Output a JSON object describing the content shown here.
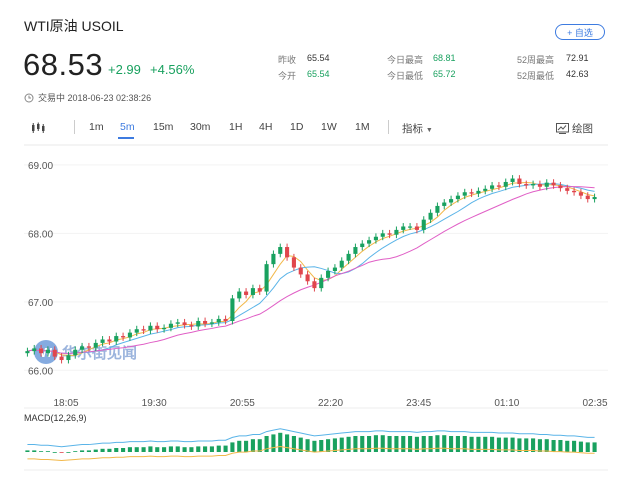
{
  "header": {
    "title": "WTI原油 USOIL",
    "watch_label": "+ 自选",
    "price": "68.53",
    "change": "+2.99",
    "change_pct": "+4.56%",
    "status_time": "交易中 2018-06-23 02:38:26"
  },
  "stats": {
    "prev_close_label": "昨收",
    "prev_close": "65.54",
    "open_label": "今开",
    "open": "65.54",
    "high_label": "今日最高",
    "high": "68.81",
    "low_label": "今日最低",
    "low": "65.72",
    "w52_high_label": "52周最高",
    "w52_high": "72.91",
    "w52_low_label": "52周最低",
    "w52_low": "42.63"
  },
  "toolbar": {
    "intervals": [
      "1m",
      "5m",
      "15m",
      "30m",
      "1H",
      "4H",
      "1D",
      "1W",
      "1M"
    ],
    "active_interval": "5m",
    "indicators_label": "指标",
    "draw_label": "绘图"
  },
  "colors": {
    "up": "#19a15f",
    "down": "#e0464d",
    "accent": "#3d7be0",
    "ma_short": "#f2b84a",
    "ma_mid": "#5ab4e8",
    "ma_long": "#e05fc6"
  },
  "chart_data": {
    "type": "candlestick",
    "y_ticks": [
      "69.00",
      "68.00",
      "67.00",
      "66.00"
    ],
    "ylim": [
      65.8,
      69.1
    ],
    "x_ticks": [
      "18:05",
      "19:30",
      "20:55",
      "22:20",
      "23:45",
      "01:10",
      "02:35"
    ],
    "watermark": "华尔街见闻",
    "macd_label": "MACD(12,26,9)",
    "close_series": [
      66.28,
      66.32,
      66.25,
      66.3,
      66.2,
      66.15,
      66.22,
      66.3,
      66.35,
      66.33,
      66.4,
      66.45,
      66.42,
      66.5,
      66.48,
      66.55,
      66.6,
      66.58,
      66.65,
      66.6,
      66.62,
      66.68,
      66.7,
      66.66,
      66.64,
      66.72,
      66.68,
      66.7,
      66.75,
      66.72,
      67.05,
      67.15,
      67.1,
      67.2,
      67.15,
      67.55,
      67.7,
      67.8,
      67.65,
      67.5,
      67.4,
      67.3,
      67.2,
      67.35,
      67.45,
      67.5,
      67.6,
      67.7,
      67.8,
      67.85,
      67.9,
      67.95,
      68.0,
      67.98,
      68.05,
      68.1,
      68.1,
      68.05,
      68.2,
      68.3,
      68.4,
      68.45,
      68.5,
      68.55,
      68.6,
      68.58,
      68.62,
      68.65,
      68.7,
      68.68,
      68.75,
      68.8,
      68.72,
      68.7,
      68.72,
      68.68,
      68.74,
      68.7,
      68.66,
      68.62,
      68.6,
      68.55,
      68.5,
      68.53
    ],
    "macd_histogram": [
      0.02,
      0.02,
      0.01,
      0.01,
      0.0,
      -0.01,
      0.0,
      0.01,
      0.02,
      0.02,
      0.03,
      0.04,
      0.04,
      0.05,
      0.05,
      0.06,
      0.06,
      0.06,
      0.07,
      0.06,
      0.06,
      0.07,
      0.07,
      0.06,
      0.06,
      0.07,
      0.07,
      0.07,
      0.08,
      0.08,
      0.12,
      0.14,
      0.14,
      0.16,
      0.16,
      0.2,
      0.22,
      0.24,
      0.22,
      0.2,
      0.18,
      0.16,
      0.14,
      0.15,
      0.16,
      0.17,
      0.18,
      0.19,
      0.2,
      0.2,
      0.2,
      0.21,
      0.21,
      0.2,
      0.2,
      0.2,
      0.2,
      0.19,
      0.2,
      0.2,
      0.21,
      0.21,
      0.2,
      0.2,
      0.2,
      0.19,
      0.19,
      0.19,
      0.19,
      0.18,
      0.18,
      0.18,
      0.17,
      0.17,
      0.17,
      0.16,
      0.16,
      0.15,
      0.15,
      0.14,
      0.14,
      0.13,
      0.12,
      0.12
    ]
  }
}
